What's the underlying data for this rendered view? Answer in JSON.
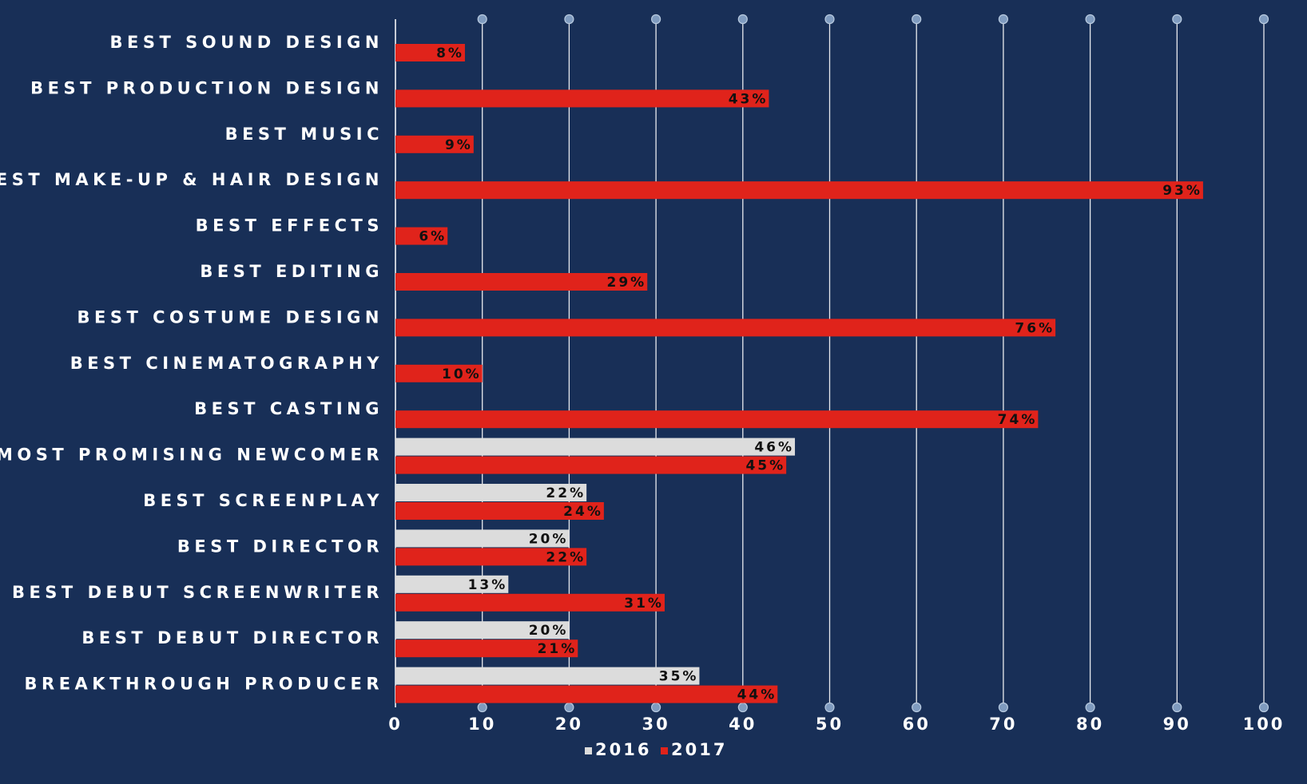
{
  "chart_data": {
    "type": "bar",
    "orientation": "horizontal",
    "categories": [
      "BEST SOUND DESIGN",
      "BEST PRODUCTION DESIGN",
      "BEST MUSIC",
      "BEST MAKE-UP & HAIR DESIGN",
      "BEST EFFECTS",
      "BEST EDITING",
      "BEST COSTUME DESIGN",
      "BEST CINEMATOGRAPHY",
      "BEST CASTING",
      "MOST PROMISING NEWCOMER",
      "BEST SCREENPLAY",
      "BEST DIRECTOR",
      "BEST DEBUT SCREENWRITER",
      "BEST DEBUT DIRECTOR",
      "BREAKTHROUGH PRODUCER"
    ],
    "series": [
      {
        "name": "2016",
        "color": "#dcdcdc",
        "values": [
          null,
          null,
          null,
          null,
          null,
          null,
          null,
          null,
          null,
          46,
          22,
          20,
          13,
          20,
          35
        ]
      },
      {
        "name": "2017",
        "color": "#e0231b",
        "values": [
          8,
          43,
          9,
          93,
          6,
          29,
          76,
          10,
          74,
          45,
          24,
          22,
          31,
          21,
          44
        ]
      }
    ],
    "value_suffix": "%",
    "xlim": [
      0,
      100
    ],
    "xticks": [
      "0",
      "10",
      "20",
      "30",
      "40",
      "50",
      "60",
      "70",
      "80",
      "90",
      "100"
    ],
    "grid": "vertical",
    "legend": "bottom-center"
  }
}
